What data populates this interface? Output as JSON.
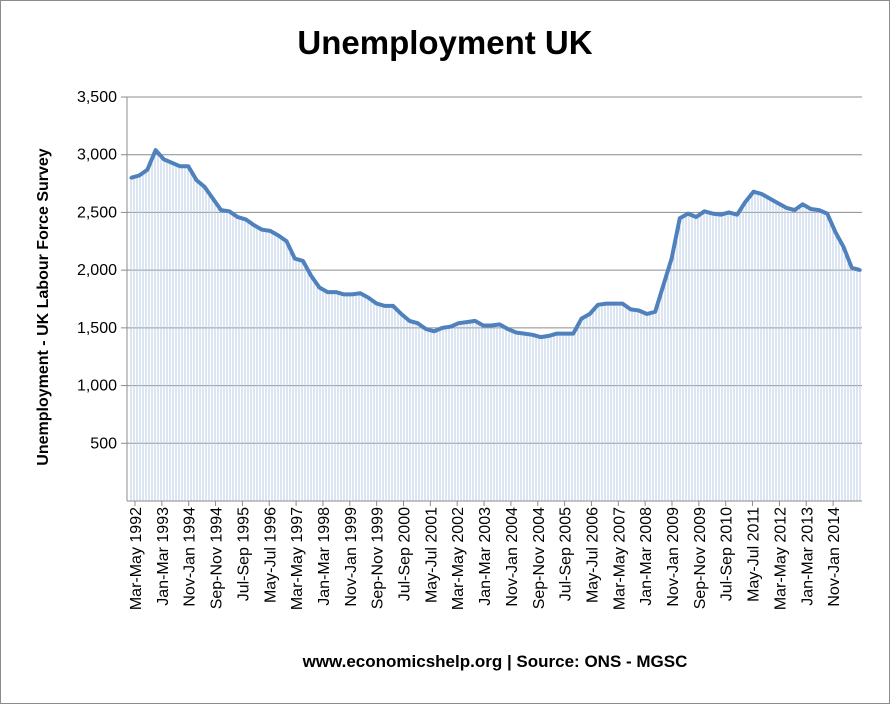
{
  "chart_data": {
    "type": "area",
    "title": "Unemployment UK",
    "ylabel": "Unemployment - UK Labour Force Survey",
    "xlabel": "www.economicshelp.org | Source: ONS - MGSC",
    "ylim": [
      0,
      3500
    ],
    "yticks": [
      500,
      1000,
      1500,
      2000,
      2500,
      3000,
      3500
    ],
    "ytick_labels": [
      "500",
      "1,000",
      "1,500",
      "2,000",
      "2,500",
      "3,000",
      "3,500"
    ],
    "grid": true,
    "legend": "none",
    "x_tick_labels": [
      "Mar-May 1992",
      "Jan-Mar 1993",
      "Nov-Jan 1994",
      "Sep-Nov 1994",
      "Jul-Sep 1995",
      "May-Jul 1996",
      "Mar-May 1997",
      "Jan-Mar 1998",
      "Nov-Jan 1999",
      "Sep-Nov 1999",
      "Jul-Sep 2000",
      "May-Jul 2001",
      "Mar-May 2002",
      "Jan-Mar 2003",
      "Nov-Jan 2004",
      "Sep-Nov 2004",
      "Jul-Sep 2005",
      "May-Jul 2006",
      "Mar-May 2007",
      "Jan-Mar 2008",
      "Nov-Jan 2009",
      "Sep-Nov 2009",
      "Jul-Sep 2010",
      "May-Jul 2011",
      "Mar-May 2012",
      "Jan-Mar 2013",
      "Nov-Jan 2014"
    ],
    "series": [
      {
        "name": "",
        "color": "#4f81bd",
        "fill_color": "#b7cde6",
        "x": [
          1992.25,
          1992.5,
          1992.75,
          1993.0,
          1993.25,
          1993.5,
          1993.75,
          1994.0,
          1994.25,
          1994.5,
          1994.75,
          1995.0,
          1995.25,
          1995.5,
          1995.75,
          1996.0,
          1996.25,
          1996.5,
          1996.75,
          1997.0,
          1997.25,
          1997.5,
          1997.75,
          1998.0,
          1998.25,
          1998.5,
          1998.75,
          1999.0,
          1999.25,
          1999.5,
          1999.75,
          2000.0,
          2000.25,
          2000.5,
          2000.75,
          2001.0,
          2001.25,
          2001.5,
          2001.75,
          2002.0,
          2002.25,
          2002.5,
          2002.75,
          2003.0,
          2003.25,
          2003.5,
          2003.75,
          2004.0,
          2004.25,
          2004.5,
          2004.75,
          2005.0,
          2005.25,
          2005.5,
          2005.75,
          2006.0,
          2006.25,
          2006.5,
          2006.75,
          2007.0,
          2007.25,
          2007.5,
          2007.75,
          2008.0,
          2008.25,
          2008.5,
          2008.75,
          2009.0,
          2009.25,
          2009.5,
          2009.75,
          2010.0,
          2010.25,
          2010.5,
          2010.75,
          2011.0,
          2011.25,
          2011.5,
          2011.75,
          2012.0,
          2012.25,
          2012.5,
          2012.75,
          2013.0,
          2013.25,
          2013.5,
          2013.75,
          2014.0,
          2014.25,
          2014.5
        ],
        "values": [
          2800,
          2820,
          2870,
          3040,
          2960,
          2930,
          2900,
          2900,
          2780,
          2720,
          2620,
          2520,
          2510,
          2460,
          2440,
          2390,
          2350,
          2340,
          2300,
          2250,
          2100,
          2080,
          1950,
          1850,
          1810,
          1810,
          1790,
          1790,
          1800,
          1760,
          1710,
          1690,
          1690,
          1620,
          1560,
          1540,
          1490,
          1470,
          1500,
          1510,
          1540,
          1550,
          1560,
          1520,
          1520,
          1530,
          1490,
          1460,
          1450,
          1440,
          1420,
          1430,
          1450,
          1450,
          1450,
          1580,
          1620,
          1700,
          1710,
          1710,
          1710,
          1660,
          1650,
          1620,
          1640,
          1870,
          2100,
          2450,
          2490,
          2460,
          2510,
          2490,
          2480,
          2500,
          2480,
          2590,
          2680,
          2660,
          2620,
          2580,
          2540,
          2520,
          2570,
          2530,
          2520,
          2490,
          2330,
          2200,
          2020,
          2000
        ]
      }
    ]
  }
}
